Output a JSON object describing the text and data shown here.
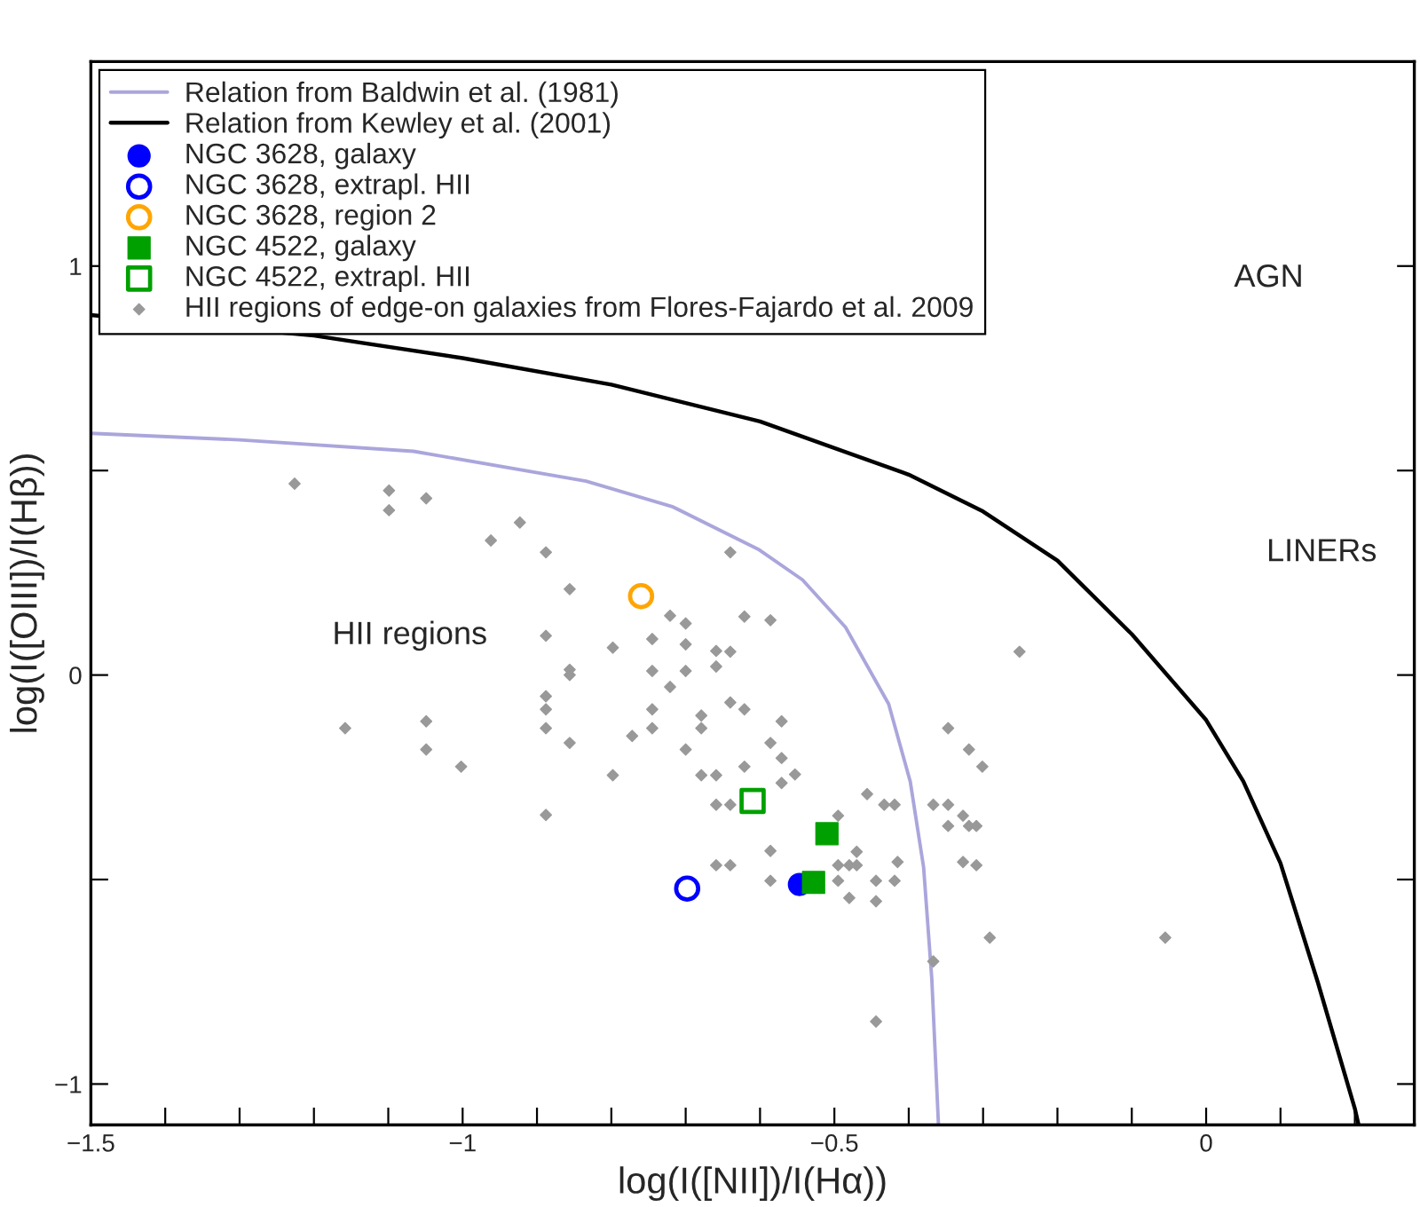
{
  "chart_data": {
    "type": "scatter",
    "xlabel": "log(I([NII])/I(Hα))",
    "ylabel": "log(I([OIII])/I(Hβ))",
    "xlim": [
      -1.5,
      0.28
    ],
    "ylim": [
      -1.1,
      1.5
    ],
    "xticks": [
      {
        "value": -1.5,
        "label": "−1.5"
      },
      {
        "value": -1.4,
        "label": null
      },
      {
        "value": -1.3,
        "label": null
      },
      {
        "value": -1.2,
        "label": null
      },
      {
        "value": -1.1,
        "label": null
      },
      {
        "value": -1.0,
        "label": "−1"
      },
      {
        "value": -0.9,
        "label": null
      },
      {
        "value": -0.8,
        "label": null
      },
      {
        "value": -0.7,
        "label": null
      },
      {
        "value": -0.6,
        "label": null
      },
      {
        "value": -0.5,
        "label": "−0.5"
      },
      {
        "value": -0.4,
        "label": null
      },
      {
        "value": -0.3,
        "label": null
      },
      {
        "value": -0.2,
        "label": null
      },
      {
        "value": -0.1,
        "label": null
      },
      {
        "value": 0,
        "label": "0"
      },
      {
        "value": 0.1,
        "label": null
      },
      {
        "value": 0.2,
        "label": null
      }
    ],
    "yticks": [
      {
        "value": -1,
        "label": "−1"
      },
      {
        "value": -0.5,
        "label": null
      },
      {
        "value": 0,
        "label": "0"
      },
      {
        "value": 0.5,
        "label": null
      },
      {
        "value": 1,
        "label": "1"
      }
    ],
    "grid": false,
    "legend": "top left",
    "annotations": [
      "AGN",
      "LINERs",
      "HII regions"
    ],
    "series": [
      {
        "name": "Relation from Baldwin et al. (1981)",
        "type": "line",
        "color": "#aaa6dc",
        "marker": "none",
        "line_style": "solid",
        "x": [
          -1.5,
          -1.3,
          -1.066,
          -0.834,
          -0.717,
          -0.601,
          -0.543,
          -0.485,
          -0.427,
          -0.398,
          -0.38,
          -0.369,
          -0.36
        ],
        "values": [
          0.591,
          0.575,
          0.547,
          0.474,
          0.411,
          0.306,
          0.233,
          0.117,
          -0.071,
          -0.26,
          -0.47,
          -0.742,
          -1.1
        ]
      },
      {
        "name": "Relation from Kewley et al. (2001)",
        "type": "line",
        "color": "#000000",
        "marker": "none",
        "line_style": "solid",
        "x": [
          -1.5,
          -1.2,
          -1.0,
          -0.8,
          -0.6,
          -0.4,
          -0.3,
          -0.2,
          -0.1,
          0.0,
          0.05,
          0.1,
          0.15,
          0.2,
          0.205
        ],
        "values": [
          0.88,
          0.83,
          0.775,
          0.71,
          0.62,
          0.49,
          0.4,
          0.28,
          0.1,
          -0.11,
          -0.26,
          -0.46,
          -0.75,
          -1.06,
          -1.1
        ]
      },
      {
        "name": "NGC 3628, galaxy",
        "color": "#0000ff",
        "marker": "circle",
        "x": [
          -0.547
        ],
        "values": [
          -0.512
        ]
      },
      {
        "name": "NGC 3628, extrapl. HII",
        "color": "#0000ff",
        "marker": "circle",
        "x": [
          -0.698
        ],
        "values": [
          -0.522
        ]
      },
      {
        "name": "NGC 3628, region 2",
        "color": "#ffa500",
        "marker": "circle",
        "x": [
          -0.76
        ],
        "values": [
          0.193
        ]
      },
      {
        "name": "NGC 4522, galaxy",
        "color": "#00a000",
        "marker": "square",
        "x": [
          -0.51,
          -0.528
        ],
        "values": [
          -0.388,
          -0.507
        ]
      },
      {
        "name": "NGC 4522, extrapl. HII",
        "color": "#00a000",
        "marker": "square",
        "x": [
          -0.61
        ],
        "values": [
          -0.308
        ]
      },
      {
        "name": "HII regions of edge-on galaxies from Flores-Fajardo et al. 2009",
        "color": "#999999",
        "marker": "diamond",
        "x": [
          -1.226,
          -1.099,
          -1.099,
          -1.049,
          -0.962,
          -0.923,
          -0.888,
          -0.64,
          -0.856,
          -0.888,
          -0.721,
          -0.7,
          -0.621,
          -0.586,
          -0.798,
          -0.745,
          -0.7,
          -0.659,
          -0.64,
          -0.659,
          -0.856,
          -0.856,
          -0.745,
          -0.7,
          -0.721,
          -0.888,
          -0.888,
          -0.888,
          -0.856,
          -1.158,
          -1.049,
          -1.049,
          -1.002,
          -0.745,
          -0.745,
          -0.772,
          -0.679,
          -0.679,
          -0.64,
          -0.621,
          -0.571,
          -0.586,
          -0.571,
          -0.553,
          -0.571,
          -0.7,
          -0.798,
          -0.679,
          -0.659,
          -0.621,
          -0.888,
          -0.659,
          -0.64,
          -0.495,
          -0.456,
          -0.433,
          -0.419,
          -0.367,
          -0.347,
          -0.347,
          -0.319,
          -0.301,
          -0.327,
          -0.347,
          -0.319,
          -0.309,
          -0.251,
          -0.495,
          -0.47,
          -0.48,
          -0.47,
          -0.415,
          -0.444,
          -0.419,
          -0.48,
          -0.444,
          -0.495,
          -0.586,
          -0.586,
          -0.659,
          -0.64,
          -0.327,
          -0.309,
          -0.291,
          -0.055,
          -0.367,
          -0.444
        ],
        "values": [
          0.468,
          0.451,
          0.403,
          0.432,
          0.329,
          0.373,
          0.3,
          0.3,
          0.21,
          0.096,
          0.145,
          0.126,
          0.143,
          0.134,
          0.067,
          0.088,
          0.075,
          0.059,
          0.057,
          0.021,
          0.013,
          0.0,
          0.01,
          0.01,
          -0.029,
          -0.052,
          -0.084,
          -0.13,
          -0.166,
          -0.13,
          -0.113,
          -0.182,
          -0.224,
          -0.084,
          -0.13,
          -0.149,
          -0.099,
          -0.13,
          -0.067,
          -0.084,
          -0.113,
          -0.166,
          -0.203,
          -0.243,
          -0.264,
          -0.182,
          -0.245,
          -0.245,
          -0.245,
          -0.224,
          -0.342,
          -0.317,
          -0.317,
          -0.344,
          -0.291,
          -0.317,
          -0.317,
          -0.317,
          -0.317,
          -0.13,
          -0.182,
          -0.224,
          -0.344,
          -0.369,
          -0.369,
          -0.369,
          0.057,
          -0.465,
          -0.432,
          -0.465,
          -0.465,
          -0.457,
          -0.503,
          -0.503,
          -0.545,
          -0.553,
          -0.503,
          -0.43,
          -0.503,
          -0.465,
          -0.465,
          -0.457,
          -0.465,
          -0.642,
          -0.642,
          -0.7,
          -0.847
        ]
      }
    ]
  }
}
